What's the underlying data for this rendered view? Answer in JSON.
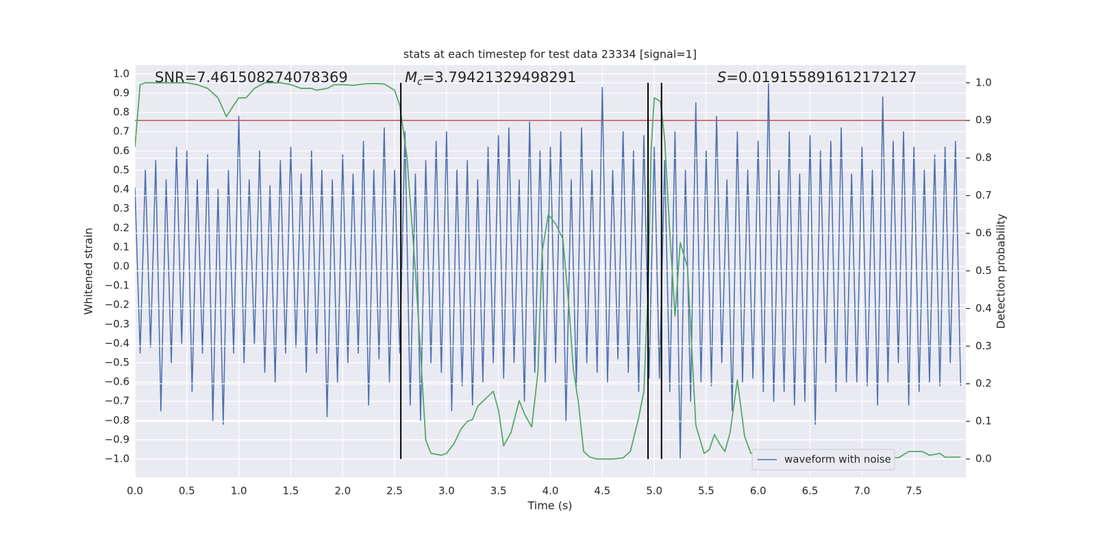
{
  "chart_data": {
    "type": "line",
    "title": "stats at each timestep for test data 23334 [signal=1]",
    "x_label": "Time (s)",
    "y_label": "Whitened strain",
    "y2_label": "Detection probability",
    "xlim": [
      0,
      8
    ],
    "ylim": [
      -1.096,
      1.046
    ],
    "y2lim": [
      -0.049,
      1.047
    ],
    "xticks": [
      {
        "value": 0,
        "label": "0.0"
      },
      0.5,
      {
        "value": 1,
        "label": "1.0"
      },
      1.5,
      {
        "value": 2,
        "label": "2.0"
      },
      2.5,
      {
        "value": 3,
        "label": "3.0"
      },
      3.5,
      {
        "value": 4,
        "label": "4.0"
      },
      4.5,
      {
        "value": 5,
        "label": "5.0"
      },
      5.5,
      {
        "value": 6,
        "label": "6.0"
      },
      6.5,
      {
        "value": 7,
        "label": "7.0"
      },
      7.5
    ],
    "yticks": [
      {
        "value": -1,
        "label": "−1.0"
      },
      {
        "value": -0.9,
        "label": "−0.9"
      },
      {
        "value": -0.8,
        "label": "−0.8"
      },
      {
        "value": -0.7,
        "label": "−0.7"
      },
      {
        "value": -0.6,
        "label": "−0.6"
      },
      {
        "value": -0.5,
        "label": "−0.5"
      },
      {
        "value": -0.4,
        "label": "−0.4"
      },
      {
        "value": -0.3,
        "label": "−0.3"
      },
      {
        "value": -0.2,
        "label": "−0.2"
      },
      {
        "value": -0.1,
        "label": "−0.1"
      },
      {
        "value": 0,
        "label": "0.0"
      },
      0.1,
      0.2,
      0.3,
      0.4,
      0.5,
      0.6,
      0.7,
      0.8,
      0.9,
      {
        "value": 1,
        "label": "1.0"
      }
    ],
    "y2ticks": [
      {
        "value": 0,
        "label": "0.0"
      },
      0.1,
      0.2,
      0.3,
      0.4,
      0.5,
      0.6,
      0.7,
      0.8,
      0.9,
      {
        "value": 1,
        "label": "1.0"
      }
    ],
    "grid": true,
    "legend": "lower right",
    "annotations": [
      {
        "text": "SNR=7.461508274078369"
      },
      {
        "symbol": "M",
        "subscript": "c",
        "text": "=3.79421329498291"
      },
      {
        "symbol": "S",
        "text": "=0.019155891612172127"
      }
    ],
    "series": [
      {
        "name": "waveform with noise",
        "color": "#4c72b0",
        "axis": "y",
        "x": [
          0,
          0.05,
          0.1,
          0.15,
          0.2,
          0.25,
          0.3,
          0.35,
          0.4,
          0.45,
          0.5,
          0.55,
          0.6,
          0.65,
          0.7,
          0.75,
          0.8,
          0.85,
          0.9,
          0.95,
          1,
          1.05,
          1.1,
          1.15,
          1.2,
          1.25,
          1.3,
          1.35,
          1.4,
          1.45,
          1.5,
          1.55,
          1.6,
          1.65,
          1.7,
          1.75,
          1.8,
          1.85,
          1.9,
          1.95,
          2,
          2.05,
          2.1,
          2.15,
          2.2,
          2.25,
          2.3,
          2.35,
          2.4,
          2.45,
          2.5,
          2.55,
          2.6,
          2.65,
          2.7,
          2.75,
          2.8,
          2.85,
          2.9,
          2.95,
          3,
          3.05,
          3.1,
          3.15,
          3.2,
          3.25,
          3.3,
          3.35,
          3.4,
          3.45,
          3.5,
          3.55,
          3.6,
          3.65,
          3.7,
          3.75,
          3.8,
          3.85,
          3.9,
          3.95,
          4,
          4.05,
          4.1,
          4.15,
          4.2,
          4.25,
          4.3,
          4.35,
          4.4,
          4.45,
          4.5,
          4.55,
          4.6,
          4.65,
          4.7,
          4.75,
          4.8,
          4.85,
          4.9,
          4.95,
          5,
          5.05,
          5.1,
          5.15,
          5.2,
          5.25,
          5.3,
          5.35,
          5.4,
          5.45,
          5.5,
          5.55,
          5.6,
          5.65,
          5.7,
          5.75,
          5.8,
          5.85,
          5.9,
          5.95,
          6,
          6.05,
          6.1,
          6.15,
          6.2,
          6.25,
          6.3,
          6.35,
          6.4,
          6.45,
          6.5,
          6.55,
          6.6,
          6.65,
          6.7,
          6.75,
          6.8,
          6.85,
          6.9,
          6.95,
          7,
          7.05,
          7.1,
          7.15,
          7.2,
          7.25,
          7.3,
          7.35,
          7.4,
          7.45,
          7.5,
          7.55,
          7.6,
          7.65,
          7.7,
          7.75,
          7.8,
          7.85,
          7.9,
          7.95
        ],
        "values": [
          0.41,
          -0.45,
          0.5,
          -0.42,
          0.55,
          -0.75,
          0.45,
          -0.5,
          0.62,
          -0.4,
          0.6,
          -0.65,
          0.45,
          -0.45,
          0.58,
          -0.8,
          0.4,
          -0.82,
          0.5,
          -0.45,
          0.78,
          -0.5,
          0.45,
          -0.4,
          0.6,
          -0.55,
          0.42,
          -0.6,
          0.55,
          -0.45,
          0.62,
          -0.42,
          0.48,
          -0.55,
          0.6,
          -0.45,
          0.5,
          -0.78,
          0.45,
          -0.6,
          0.58,
          -0.5,
          0.48,
          -0.45,
          0.65,
          -0.72,
          0.5,
          -0.48,
          0.72,
          -0.6,
          0.5,
          -0.45,
          0.7,
          -0.72,
          0.48,
          -0.8,
          0.55,
          -0.5,
          0.65,
          -0.55,
          0.7,
          -0.75,
          0.5,
          -0.62,
          0.55,
          -0.72,
          0.45,
          -0.6,
          0.62,
          -0.5,
          0.68,
          -0.58,
          0.72,
          -0.5,
          0.45,
          -0.7,
          0.75,
          -0.55,
          0.6,
          -0.6,
          0.62,
          -0.5,
          0.7,
          -0.8,
          0.45,
          -0.62,
          0.72,
          -0.5,
          0.5,
          -0.55,
          0.93,
          -0.6,
          0.5,
          -0.48,
          0.7,
          -0.55,
          0.6,
          -0.65,
          0.68,
          -0.58,
          0.62,
          -0.58,
          0.55,
          -0.65,
          0.7,
          -1.0,
          0.5,
          -0.7,
          0.85,
          -0.6,
          0.6,
          -0.62,
          0.78,
          -0.5,
          0.45,
          -0.75,
          0.7,
          -0.6,
          0.5,
          -0.58,
          0.65,
          -0.65,
          0.95,
          -0.7,
          0.5,
          -0.65,
          0.7,
          -0.72,
          0.48,
          -0.7,
          0.68,
          -0.82,
          0.6,
          -0.5,
          0.65,
          -0.65,
          0.72,
          -0.6,
          0.48,
          -0.6,
          0.62,
          -0.62,
          0.5,
          -0.72,
          0.88,
          -0.6,
          0.65,
          -0.5,
          0.7,
          -0.72,
          0.62,
          -0.65,
          0.5,
          -0.6,
          0.58,
          -0.62,
          0.62,
          -0.5,
          0.65,
          -0.62
        ]
      },
      {
        "color": "#55a868",
        "axis": "y2",
        "x": [
          0,
          0.05,
          0.1,
          0.2,
          0.5,
          0.6,
          0.7,
          0.8,
          0.88,
          0.95,
          1,
          1.07,
          1.15,
          1.25,
          1.4,
          1.5,
          1.6,
          1.7,
          1.75,
          1.85,
          1.92,
          2,
          2.1,
          2.2,
          2.3,
          2.4,
          2.5,
          2.55,
          2.62,
          2.7,
          2.75,
          2.8,
          2.85,
          2.95,
          3,
          3.07,
          3.14,
          3.2,
          3.25,
          3.3,
          3.45,
          3.5,
          3.55,
          3.62,
          3.7,
          3.75,
          3.82,
          3.88,
          3.92,
          3.98,
          4.05,
          4.12,
          4.18,
          4.22,
          4.27,
          4.32,
          4.38,
          4.45,
          4.6,
          4.7,
          4.77,
          4.85,
          4.9,
          4.94,
          4.97,
          5,
          5.06,
          5.1,
          5.15,
          5.2,
          5.25,
          5.32,
          5.4,
          5.48,
          5.53,
          5.58,
          5.63,
          5.68,
          5.73,
          5.8,
          5.87,
          5.93,
          6,
          6.08,
          6.15,
          6.3,
          6.45,
          6.6,
          7,
          7.25,
          7.35,
          7.45,
          7.55,
          7.58,
          7.65,
          7.75,
          7.8,
          7.95
        ],
        "values": [
          0.83,
          0.995,
          1.0,
          1.0,
          1.0,
          0.995,
          0.985,
          0.96,
          0.91,
          0.94,
          0.96,
          0.96,
          0.985,
          1.0,
          1.0,
          0.995,
          0.985,
          0.985,
          0.98,
          0.985,
          0.995,
          0.995,
          0.993,
          0.997,
          0.998,
          0.997,
          0.98,
          0.94,
          0.8,
          0.5,
          0.28,
          0.05,
          0.015,
          0.01,
          0.015,
          0.04,
          0.08,
          0.1,
          0.105,
          0.14,
          0.18,
          0.13,
          0.035,
          0.07,
          0.155,
          0.12,
          0.085,
          0.23,
          0.55,
          0.65,
          0.625,
          0.585,
          0.4,
          0.24,
          0.15,
          0.02,
          0.005,
          0.0,
          0.0,
          0.003,
          0.02,
          0.11,
          0.18,
          0.45,
          0.82,
          0.96,
          0.95,
          0.85,
          0.6,
          0.38,
          0.575,
          0.51,
          0.09,
          0.015,
          0.025,
          0.065,
          0.04,
          0.02,
          0.07,
          0.21,
          0.06,
          0.015,
          0.02,
          0.02,
          0.005,
          0.005,
          0.01,
          0.003,
          0.0,
          0.005,
          0.003,
          0.02,
          0.02,
          0.02,
          0.01,
          0.015,
          0.005,
          0.005
        ]
      }
    ],
    "hline": {
      "value": 0.9,
      "axis": "y2",
      "color": "#c44e52"
    },
    "vlines": {
      "x": [
        2.56,
        4.94,
        5.07
      ],
      "span": [
        0,
        1
      ],
      "axis": "y2",
      "color": "#000000"
    }
  }
}
